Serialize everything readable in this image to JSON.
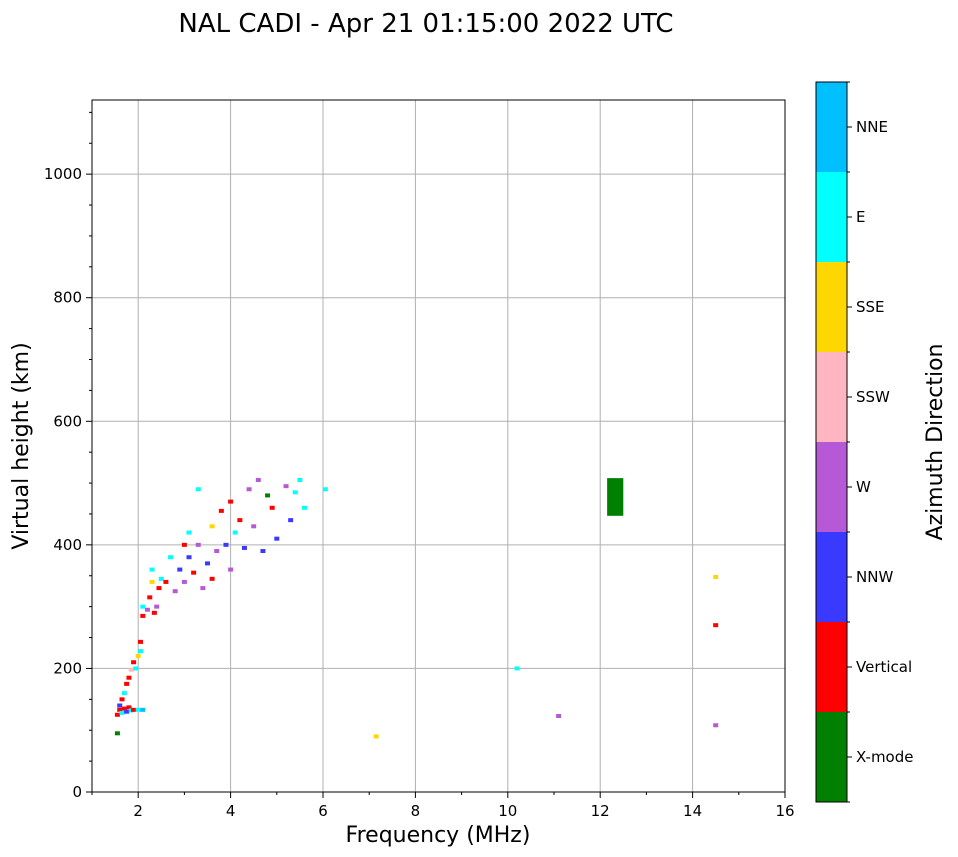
{
  "chart_data": {
    "type": "scatter",
    "title": "NAL CADI - Apr 21 01:15:00 2022 UTC",
    "xlabel": "Frequency (MHz)",
    "ylabel": "Virtual height (km)",
    "xlim": [
      1,
      16
    ],
    "ylim": [
      0,
      1120
    ],
    "xticks": [
      2,
      4,
      6,
      8,
      10,
      12,
      14,
      16
    ],
    "yticks": [
      0,
      200,
      400,
      600,
      800,
      1000
    ],
    "grid": true,
    "colorbar": {
      "label": "Azimuth Direction",
      "categories": [
        {
          "name": "X-mode",
          "color": "#008000"
        },
        {
          "name": "Vertical",
          "color": "#ff0000"
        },
        {
          "name": "NNW",
          "color": "#3a3aff"
        },
        {
          "name": "W",
          "color": "#b659d6"
        },
        {
          "name": "SSW",
          "color": "#ffb6c1"
        },
        {
          "name": "SSE",
          "color": "#ffd700"
        },
        {
          "name": "E",
          "color": "#00ffff"
        },
        {
          "name": "NNE",
          "color": "#00bfff"
        }
      ]
    },
    "points": [
      {
        "f": 1.55,
        "h": 95,
        "c": "X-mode"
      },
      {
        "f": 1.55,
        "h": 125,
        "c": "Vertical"
      },
      {
        "f": 1.6,
        "h": 133,
        "c": "Vertical"
      },
      {
        "f": 1.6,
        "h": 140,
        "c": "NNW"
      },
      {
        "f": 1.65,
        "h": 128,
        "c": "E"
      },
      {
        "f": 1.65,
        "h": 150,
        "c": "Vertical"
      },
      {
        "f": 1.7,
        "h": 135,
        "c": "Vertical"
      },
      {
        "f": 1.7,
        "h": 160,
        "c": "E"
      },
      {
        "f": 1.75,
        "h": 130,
        "c": "NNW"
      },
      {
        "f": 1.75,
        "h": 175,
        "c": "Vertical"
      },
      {
        "f": 1.8,
        "h": 137,
        "c": "Vertical"
      },
      {
        "f": 1.8,
        "h": 185,
        "c": "Vertical"
      },
      {
        "f": 1.85,
        "h": 132,
        "c": "E"
      },
      {
        "f": 1.85,
        "h": 198,
        "c": "SSW"
      },
      {
        "f": 1.9,
        "h": 210,
        "c": "Vertical"
      },
      {
        "f": 1.9,
        "h": 133,
        "c": "Vertical"
      },
      {
        "f": 1.95,
        "h": 200,
        "c": "E"
      },
      {
        "f": 2.0,
        "h": 220,
        "c": "SSE"
      },
      {
        "f": 2.0,
        "h": 133,
        "c": "E"
      },
      {
        "f": 2.05,
        "h": 228,
        "c": "E"
      },
      {
        "f": 2.05,
        "h": 243,
        "c": "Vertical"
      },
      {
        "f": 2.1,
        "h": 133,
        "c": "NNE"
      },
      {
        "f": 2.1,
        "h": 285,
        "c": "Vertical"
      },
      {
        "f": 2.1,
        "h": 300,
        "c": "E"
      },
      {
        "f": 2.2,
        "h": 295,
        "c": "W"
      },
      {
        "f": 2.25,
        "h": 315,
        "c": "Vertical"
      },
      {
        "f": 2.3,
        "h": 340,
        "c": "SSE"
      },
      {
        "f": 2.3,
        "h": 360,
        "c": "E"
      },
      {
        "f": 2.35,
        "h": 290,
        "c": "Vertical"
      },
      {
        "f": 2.4,
        "h": 300,
        "c": "W"
      },
      {
        "f": 2.45,
        "h": 330,
        "c": "Vertical"
      },
      {
        "f": 2.5,
        "h": 345,
        "c": "E"
      },
      {
        "f": 2.6,
        "h": 340,
        "c": "Vertical"
      },
      {
        "f": 2.7,
        "h": 380,
        "c": "E"
      },
      {
        "f": 2.8,
        "h": 325,
        "c": "W"
      },
      {
        "f": 2.9,
        "h": 360,
        "c": "NNW"
      },
      {
        "f": 3.0,
        "h": 400,
        "c": "Vertical"
      },
      {
        "f": 3.0,
        "h": 340,
        "c": "W"
      },
      {
        "f": 3.1,
        "h": 420,
        "c": "E"
      },
      {
        "f": 3.1,
        "h": 380,
        "c": "NNW"
      },
      {
        "f": 3.2,
        "h": 355,
        "c": "Vertical"
      },
      {
        "f": 3.3,
        "h": 400,
        "c": "W"
      },
      {
        "f": 3.3,
        "h": 490,
        "c": "E"
      },
      {
        "f": 3.4,
        "h": 330,
        "c": "W"
      },
      {
        "f": 3.5,
        "h": 370,
        "c": "NNW"
      },
      {
        "f": 3.6,
        "h": 430,
        "c": "SSE"
      },
      {
        "f": 3.6,
        "h": 345,
        "c": "Vertical"
      },
      {
        "f": 3.7,
        "h": 390,
        "c": "W"
      },
      {
        "f": 3.8,
        "h": 455,
        "c": "Vertical"
      },
      {
        "f": 3.9,
        "h": 400,
        "c": "NNW"
      },
      {
        "f": 4.0,
        "h": 470,
        "c": "Vertical"
      },
      {
        "f": 4.0,
        "h": 360,
        "c": "W"
      },
      {
        "f": 4.1,
        "h": 420,
        "c": "E"
      },
      {
        "f": 4.2,
        "h": 440,
        "c": "Vertical"
      },
      {
        "f": 4.3,
        "h": 395,
        "c": "NNW"
      },
      {
        "f": 4.4,
        "h": 490,
        "c": "W"
      },
      {
        "f": 4.5,
        "h": 430,
        "c": "W"
      },
      {
        "f": 4.6,
        "h": 505,
        "c": "W"
      },
      {
        "f": 4.7,
        "h": 390,
        "c": "NNW"
      },
      {
        "f": 4.8,
        "h": 480,
        "c": "X-mode"
      },
      {
        "f": 4.9,
        "h": 460,
        "c": "Vertical"
      },
      {
        "f": 5.0,
        "h": 410,
        "c": "NNW"
      },
      {
        "f": 5.2,
        "h": 495,
        "c": "W"
      },
      {
        "f": 5.3,
        "h": 440,
        "c": "NNW"
      },
      {
        "f": 5.4,
        "h": 485,
        "c": "E"
      },
      {
        "f": 5.5,
        "h": 505,
        "c": "E"
      },
      {
        "f": 5.6,
        "h": 460,
        "c": "E"
      },
      {
        "f": 6.05,
        "h": 490,
        "c": "E"
      },
      {
        "f": 7.15,
        "h": 90,
        "c": "SSE"
      },
      {
        "f": 10.2,
        "h": 200,
        "c": "E"
      },
      {
        "f": 11.1,
        "h": 123,
        "c": "W"
      },
      {
        "f": 14.5,
        "h": 348,
        "c": "SSE"
      },
      {
        "f": 14.5,
        "h": 270,
        "c": "Vertical"
      },
      {
        "f": 14.5,
        "h": 108,
        "c": "W"
      }
    ],
    "blocks": [
      {
        "f0": 12.15,
        "f1": 12.5,
        "h0": 447,
        "h1": 508,
        "c": "X-mode"
      }
    ]
  }
}
